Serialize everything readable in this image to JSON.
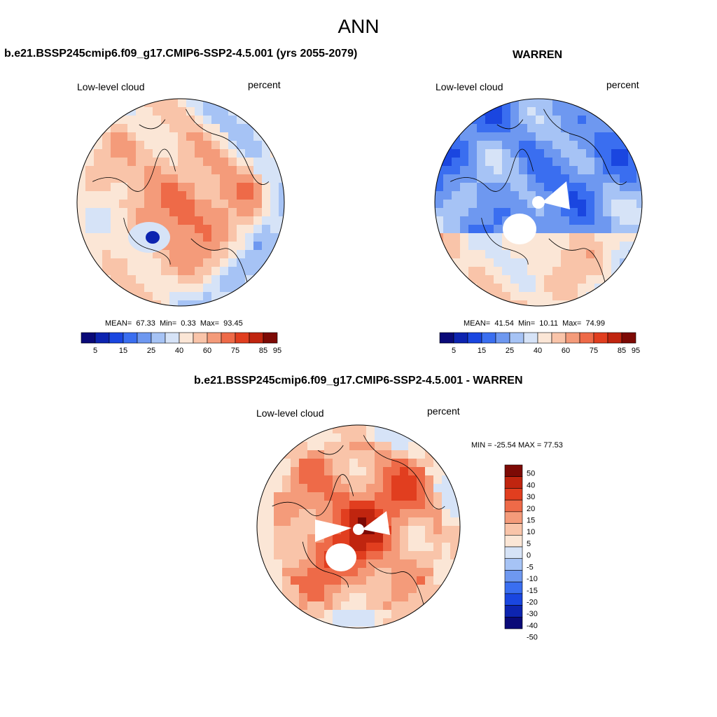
{
  "page_title": "ANN",
  "colors": {
    "seq": [
      "#0a0a78",
      "#0d24b0",
      "#1a46e0",
      "#3a6ef0",
      "#6e98f0",
      "#a6c3f5",
      "#d6e3f7",
      "#fbe6d6",
      "#f9c4a9",
      "#f49b7a",
      "#ee6a48",
      "#e13e1f",
      "#c0250f",
      "#7d0a05"
    ],
    "diff": [
      "#0a0a78",
      "#0d24b0",
      "#1a46e0",
      "#3a6ef0",
      "#6e98f0",
      "#a6c3f5",
      "#d6e3f7",
      "#fbe6d6",
      "#f9c4a9",
      "#f49b7a",
      "#ee6a48",
      "#e13e1f",
      "#c0250f",
      "#7d0a05"
    ]
  },
  "chart_data": [
    {
      "type": "heatmap",
      "projection": "north-polar-stereographic",
      "title": "b.e21.BSSP245cmip6.f09_g17.CMIP6-SSP2-4.5.001 (yrs 2055-2079)",
      "variable": "Low-level cloud",
      "units": "percent",
      "stats": {
        "mean_label": "MEAN=",
        "mean": "67.33",
        "min_label": "Min=",
        "min": "0.33",
        "max_label": "Max=",
        "max": "93.45"
      },
      "colorbar_ticks": [
        "5",
        "15",
        "25",
        "40",
        "60",
        "75",
        "85",
        "95"
      ],
      "dominant": "high"
    },
    {
      "type": "heatmap",
      "projection": "north-polar-stereographic",
      "title": "WARREN",
      "variable": "Low-level cloud",
      "units": "percent",
      "stats": {
        "mean_label": "MEAN=",
        "mean": "41.54",
        "min_label": "Min=",
        "min": "10.11",
        "max_label": "Max=",
        "max": "74.99"
      },
      "colorbar_ticks": [
        "5",
        "15",
        "25",
        "40",
        "60",
        "75",
        "85",
        "95"
      ],
      "dominant": "low"
    },
    {
      "type": "heatmap",
      "projection": "north-polar-stereographic",
      "title": "b.e21.BSSP245cmip6.f09_g17.CMIP6-SSP2-4.5.001 - WARREN",
      "variable": "Low-level cloud",
      "units": "percent",
      "range_text": "MIN = -25.54 MAX =  77.53",
      "colorbar_ticks": [
        "50",
        "40",
        "30",
        "20",
        "15",
        "10",
        "5",
        "0",
        "-5",
        "-10",
        "-15",
        "-20",
        "-30",
        "-40",
        "-50"
      ],
      "dominant": "positive"
    }
  ]
}
